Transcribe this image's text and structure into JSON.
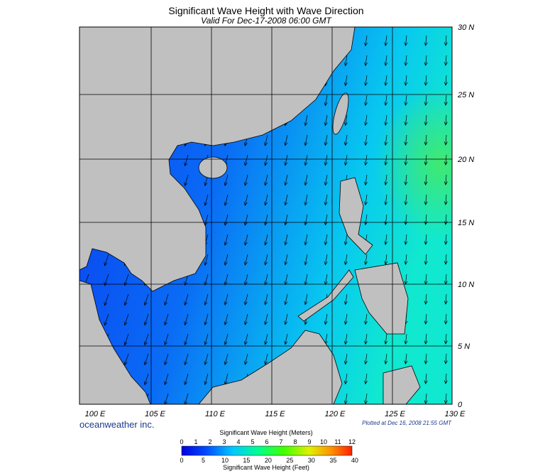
{
  "header": {
    "title": "Significant Wave Height with Wave Direction",
    "subtitle": "Valid For Dec-17-2008 06:00 GMT"
  },
  "map": {
    "lat_labels": [
      "30 N",
      "25 N",
      "20 N",
      "15 N",
      "10 N",
      "5 N",
      "0"
    ],
    "lon_labels": [
      "100 E",
      "105 E",
      "110 E",
      "115 E",
      "120 E",
      "125 E",
      "130 E"
    ]
  },
  "footer": {
    "brand": "oceanweather inc.",
    "plotted": "Plotted at Dec 16, 2008 21:55 GMT"
  },
  "legend": {
    "meters_title": "Significant Wave Height (Meters)",
    "meters_ticks": [
      0,
      1,
      2,
      3,
      4,
      5,
      6,
      7,
      8,
      9,
      10,
      11,
      12
    ],
    "feet_ticks": [
      0,
      5,
      10,
      15,
      20,
      25,
      30,
      35,
      40
    ],
    "feet_title": "Significant Wave Height (Feet)"
  }
}
